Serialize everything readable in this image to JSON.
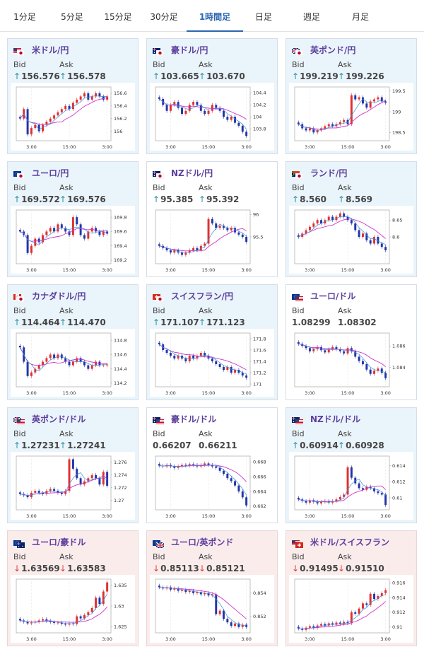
{
  "tabs": [
    "1分足",
    "5分足",
    "15分足",
    "30分足",
    "1時間足",
    "日足",
    "週足",
    "月足"
  ],
  "active_tab": 4,
  "labels": {
    "bid": "Bid",
    "ask": "Ask"
  },
  "colors": {
    "up_arrow": "#2a8f9c",
    "down_arrow": "#d84040",
    "candle_up": "#e03030",
    "candle_down": "#2235a8",
    "ma_long": "#cc33cc",
    "ma_short": "#3b8fd8",
    "pair_name": "#5b3f9d"
  },
  "cards": [
    {
      "pair": "米ドル/円",
      "flags": [
        "us-flag",
        "jp-flag"
      ],
      "bid": "156.576",
      "ask": "156.578",
      "dir": "up",
      "bg": "blue",
      "chart_data": {
        "type": "candlestick",
        "x_ticks": [
          "3:00",
          "15:00",
          "3:00"
        ],
        "y_ticks": [
          "156.6",
          "156.4",
          "156.2",
          "156"
        ],
        "ylim": [
          155.85,
          156.7
        ],
        "closes": [
          156.2,
          156.35,
          155.95,
          156.05,
          156.1,
          156.0,
          156.1,
          156.15,
          156.2,
          156.25,
          156.3,
          156.35,
          156.4,
          156.35,
          156.45,
          156.5,
          156.55,
          156.6,
          156.5,
          156.55,
          156.6,
          156.55,
          156.5,
          156.55
        ]
      }
    },
    {
      "pair": "豪ドル/円",
      "flags": [
        "au-flag",
        "jp-flag"
      ],
      "bid": "103.665",
      "ask": "103.670",
      "dir": "up",
      "bg": "blue",
      "chart_data": {
        "type": "candlestick",
        "x_ticks": [
          "3:00",
          "15:00",
          "3:00"
        ],
        "y_ticks": [
          "104.4",
          "104.2",
          "104",
          "103.8"
        ],
        "ylim": [
          103.6,
          104.5
        ],
        "closes": [
          104.3,
          104.2,
          104.1,
          104.2,
          104.25,
          104.15,
          104.05,
          104.1,
          104.2,
          104.25,
          104.2,
          104.1,
          104.05,
          104.1,
          104.2,
          104.15,
          104.1,
          104.0,
          103.95,
          104.0,
          103.9,
          103.85,
          103.75,
          103.68
        ]
      }
    },
    {
      "pair": "英ポンド/円",
      "flags": [
        "gb-flag",
        "jp-flag"
      ],
      "bid": "199.219",
      "ask": "199.226",
      "dir": "up",
      "bg": "blue",
      "chart_data": {
        "type": "candlestick",
        "x_ticks": [
          "3:00",
          "15:00",
          "3:00"
        ],
        "y_ticks": [
          "199.5",
          "199",
          "198.5"
        ],
        "ylim": [
          198.3,
          199.6
        ],
        "closes": [
          198.7,
          198.6,
          198.55,
          198.6,
          198.5,
          198.55,
          198.6,
          198.65,
          198.7,
          198.65,
          198.7,
          198.75,
          198.8,
          198.7,
          199.4,
          199.3,
          199.35,
          199.2,
          199.1,
          199.25,
          199.3,
          199.35,
          199.25,
          199.22
        ]
      }
    },
    {
      "pair": "ユーロ/円",
      "flags": [
        "eu-flag",
        "jp-flag"
      ],
      "bid": "169.572",
      "ask": "169.576",
      "dir": "up",
      "bg": "blue",
      "chart_data": {
        "type": "candlestick",
        "x_ticks": [
          "3:00",
          "15:00",
          "3:00"
        ],
        "y_ticks": [
          "169.8",
          "169.6",
          "169.4",
          "169.2"
        ],
        "ylim": [
          169.15,
          169.9
        ],
        "closes": [
          169.6,
          169.55,
          169.3,
          169.4,
          169.5,
          169.45,
          169.55,
          169.6,
          169.65,
          169.6,
          169.7,
          169.65,
          169.6,
          169.55,
          169.8,
          169.7,
          169.55,
          169.5,
          169.6,
          169.65,
          169.6,
          169.55,
          169.6,
          169.57
        ]
      }
    },
    {
      "pair": "NZドル/円",
      "flags": [
        "nz-flag",
        "jp-flag"
      ],
      "bid": "95.385",
      "ask": "95.392",
      "dir": "up",
      "bg": "white",
      "chart_data": {
        "type": "candlestick",
        "x_ticks": [
          "3:00",
          "15:00",
          "3:00"
        ],
        "y_ticks": [
          "96",
          "95.5"
        ],
        "ylim": [
          94.9,
          96.1
        ],
        "closes": [
          95.3,
          95.25,
          95.2,
          95.15,
          95.2,
          95.15,
          95.1,
          95.15,
          95.2,
          95.25,
          95.2,
          95.3,
          95.35,
          95.9,
          95.8,
          95.7,
          95.75,
          95.7,
          95.65,
          95.7,
          95.6,
          95.55,
          95.5,
          95.39
        ]
      }
    },
    {
      "pair": "ランド/円",
      "flags": [
        "za-flag",
        "jp-flag"
      ],
      "bid": "8.560",
      "ask": "8.569",
      "dir": "up",
      "bg": "blue",
      "chart_data": {
        "type": "candlestick",
        "x_ticks": [
          "3:00",
          "15:00",
          "3:00"
        ],
        "y_ticks": [
          "8.65",
          "8.6"
        ],
        "ylim": [
          8.52,
          8.68
        ],
        "closes": [
          8.6,
          8.61,
          8.62,
          8.63,
          8.64,
          8.65,
          8.64,
          8.65,
          8.66,
          8.65,
          8.66,
          8.67,
          8.66,
          8.65,
          8.64,
          8.62,
          8.6,
          8.61,
          8.59,
          8.58,
          8.6,
          8.58,
          8.57,
          8.56
        ]
      }
    },
    {
      "pair": "カナダドル/円",
      "flags": [
        "ca-flag",
        "jp-flag"
      ],
      "bid": "114.464",
      "ask": "114.470",
      "dir": "up",
      "bg": "blue",
      "chart_data": {
        "type": "candlestick",
        "x_ticks": [
          "3:00",
          "15:00",
          "3:00"
        ],
        "y_ticks": [
          "114.8",
          "114.6",
          "114.4",
          "114.2"
        ],
        "ylim": [
          114.15,
          114.9
        ],
        "closes": [
          114.7,
          114.5,
          114.3,
          114.35,
          114.4,
          114.45,
          114.5,
          114.55,
          114.6,
          114.55,
          114.6,
          114.55,
          114.5,
          114.45,
          114.5,
          114.55,
          114.5,
          114.45,
          114.4,
          114.45,
          114.5,
          114.45,
          114.45,
          114.46
        ]
      }
    },
    {
      "pair": "スイスフラン/円",
      "flags": [
        "ch-flag",
        "jp-flag"
      ],
      "bid": "171.107",
      "ask": "171.123",
      "dir": "up",
      "bg": "blue",
      "chart_data": {
        "type": "candlestick",
        "x_ticks": [
          "3:00",
          "15:00",
          "3:00"
        ],
        "y_ticks": [
          "171.8",
          "171.6",
          "171.4",
          "171.2",
          "171"
        ],
        "ylim": [
          170.95,
          171.9
        ],
        "closes": [
          171.7,
          171.6,
          171.55,
          171.5,
          171.45,
          171.5,
          171.45,
          171.4,
          171.5,
          171.45,
          171.5,
          171.55,
          171.5,
          171.45,
          171.4,
          171.35,
          171.3,
          171.25,
          171.3,
          171.2,
          171.25,
          171.2,
          171.15,
          171.11
        ]
      }
    },
    {
      "pair": "ユーロ/ドル",
      "flags": [
        "eu-flag",
        "us-flag"
      ],
      "bid": "1.08299",
      "ask": "1.08302",
      "dir": "none",
      "bg": "white",
      "chart_data": {
        "type": "candlestick",
        "x_ticks": [
          "3:00",
          "15:00",
          "3:00"
        ],
        "y_ticks": [
          "1.086",
          "1.084"
        ],
        "ylim": [
          1.0822,
          1.0872
        ],
        "closes": [
          1.0862,
          1.086,
          1.0858,
          1.0855,
          1.0857,
          1.0859,
          1.0856,
          1.0854,
          1.0857,
          1.0859,
          1.0857,
          1.0855,
          1.0853,
          1.0858,
          1.0855,
          1.085,
          1.0846,
          1.0843,
          1.0838,
          1.0834,
          1.0837,
          1.0839,
          1.0835,
          1.083
        ]
      }
    },
    {
      "pair": "英ポンド/ドル",
      "flags": [
        "gb-flag",
        "us-flag"
      ],
      "bid": "1.27231",
      "ask": "1.27241",
      "dir": "up",
      "bg": "blue",
      "chart_data": {
        "type": "candlestick",
        "x_ticks": [
          "3:00",
          "15:00",
          "3:00"
        ],
        "y_ticks": [
          "1.276",
          "1.274",
          "1.272",
          "1.27"
        ],
        "ylim": [
          1.2685,
          1.277
        ],
        "closes": [
          1.271,
          1.2708,
          1.2705,
          1.2712,
          1.2715,
          1.2712,
          1.271,
          1.2715,
          1.2718,
          1.2715,
          1.2712,
          1.271,
          1.2715,
          1.2765,
          1.275,
          1.2735,
          1.2725,
          1.273,
          1.2735,
          1.274,
          1.2735,
          1.2725,
          1.2745,
          1.2723
        ]
      }
    },
    {
      "pair": "豪ドル/ドル",
      "flags": [
        "au-flag",
        "us-flag"
      ],
      "bid": "0.66207",
      "ask": "0.66211",
      "dir": "none",
      "bg": "white",
      "chart_data": {
        "type": "candlestick",
        "x_ticks": [
          "3:00",
          "15:00",
          "3:00"
        ],
        "y_ticks": [
          "0.668",
          "0.666",
          "0.664",
          "0.662"
        ],
        "ylim": [
          0.6615,
          0.6688
        ],
        "closes": [
          0.6675,
          0.6674,
          0.6676,
          0.6674,
          0.6672,
          0.6674,
          0.6676,
          0.6675,
          0.6677,
          0.6676,
          0.6674,
          0.6676,
          0.6678,
          0.6676,
          0.6674,
          0.6672,
          0.6668,
          0.6664,
          0.6658,
          0.6654,
          0.6648,
          0.664,
          0.6632,
          0.6621
        ]
      }
    },
    {
      "pair": "NZドル/ドル",
      "flags": [
        "nz-flag",
        "us-flag"
      ],
      "bid": "0.60914",
      "ask": "0.60928",
      "dir": "up",
      "bg": "blue",
      "chart_data": {
        "type": "candlestick",
        "x_ticks": [
          "3:00",
          "15:00",
          "3:00"
        ],
        "y_ticks": [
          "0.614",
          "0.612",
          "0.61"
        ],
        "ylim": [
          0.6085,
          0.6152
        ],
        "closes": [
          0.6098,
          0.6096,
          0.6094,
          0.6097,
          0.6095,
          0.6093,
          0.6095,
          0.6096,
          0.6094,
          0.6096,
          0.6098,
          0.6101,
          0.6104,
          0.6138,
          0.6125,
          0.6118,
          0.6112,
          0.611,
          0.6114,
          0.6112,
          0.6108,
          0.6106,
          0.6104,
          0.6091
        ]
      }
    },
    {
      "pair": "ユーロ/豪ドル",
      "flags": [
        "eu-flag",
        "au-flag"
      ],
      "bid": "1.63569",
      "ask": "1.63583",
      "dir": "down",
      "bg": "pink",
      "chart_data": {
        "type": "candlestick",
        "x_ticks": [
          "3:00",
          "15:00",
          "3:00"
        ],
        "y_ticks": [
          "1.635",
          "1.63",
          "1.625"
        ],
        "ylim": [
          1.6235,
          1.6365
        ],
        "closes": [
          1.6265,
          1.6262,
          1.6258,
          1.626,
          1.6262,
          1.6265,
          1.6268,
          1.6264,
          1.6261,
          1.6259,
          1.626,
          1.6257,
          1.6255,
          1.6258,
          1.6256,
          1.6275,
          1.627,
          1.6278,
          1.6285,
          1.6295,
          1.632,
          1.6305,
          1.6335,
          1.6357
        ]
      }
    },
    {
      "pair": "ユーロ/英ポンド",
      "flags": [
        "eu-flag",
        "gb-flag"
      ],
      "bid": "0.85113",
      "ask": "0.85121",
      "dir": "down",
      "bg": "pink",
      "chart_data": {
        "type": "candlestick",
        "x_ticks": [
          "3:00",
          "15:00",
          "3:00"
        ],
        "y_ticks": [
          "0.854",
          "0.852"
        ],
        "ylim": [
          0.8506,
          0.8552
        ],
        "closes": [
          0.8545,
          0.8544,
          0.8545,
          0.8543,
          0.8544,
          0.8542,
          0.8543,
          0.8541,
          0.8542,
          0.854,
          0.8541,
          0.8539,
          0.854,
          0.8538,
          0.8539,
          0.8522,
          0.8525,
          0.8518,
          0.8515,
          0.8512,
          0.8514,
          0.8511,
          0.8513,
          0.8511
        ]
      }
    },
    {
      "pair": "米ドル/スイスフラン",
      "flags": [
        "us-flag",
        "ch-flag"
      ],
      "bid": "0.91495",
      "ask": "0.91510",
      "dir": "down",
      "bg": "pink",
      "chart_data": {
        "type": "candlestick",
        "x_ticks": [
          "3:00",
          "15:00",
          "3:00"
        ],
        "y_ticks": [
          "0.916",
          "0.914",
          "0.912",
          "0.91"
        ],
        "ylim": [
          0.9092,
          0.9165
        ],
        "closes": [
          0.9098,
          0.9096,
          0.9099,
          0.9101,
          0.9099,
          0.9102,
          0.9104,
          0.9102,
          0.9105,
          0.9103,
          0.9106,
          0.9104,
          0.9107,
          0.9105,
          0.912,
          0.9118,
          0.9125,
          0.9132,
          0.913,
          0.9145,
          0.9138,
          0.9142,
          0.9146,
          0.915
        ]
      }
    }
  ]
}
